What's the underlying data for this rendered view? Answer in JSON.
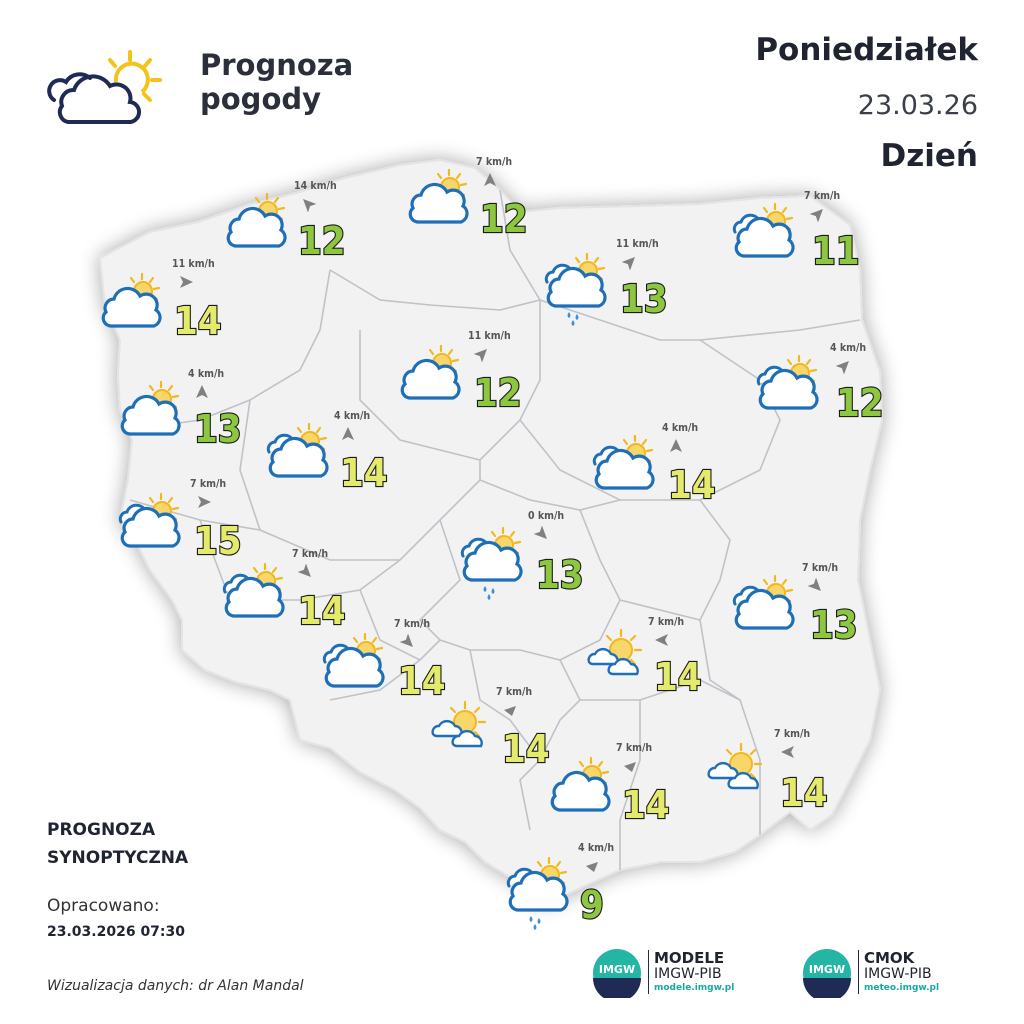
{
  "header": {
    "title_line1": "Prognoza",
    "title_line2": "pogody",
    "day": "Poniedziałek",
    "date": "23.03.26",
    "period": "Dzień"
  },
  "footer": {
    "synoptic_line1": "PROGNOZA",
    "synoptic_line2": "SYNOPTYCZNA",
    "prepared_label": "Opracowano:",
    "prepared_datetime": "23.03.2026 07:30",
    "credit": "Wizualizacja danych: dr Alan Mandal"
  },
  "logos": [
    {
      "badge": "IMGW",
      "title": "MODELE",
      "subtitle": "IMGW-PIB",
      "url": "modele.imgw.pl"
    },
    {
      "badge": "IMGW",
      "title": "CMOK",
      "subtitle": "IMGW-PIB",
      "url": "meteo.imgw.pl"
    }
  ],
  "colors": {
    "temp_cool": "#8dc63f",
    "temp_warm": "#e4ea6a",
    "cloud_stroke": "#1e6fb8",
    "sun": "#f2b81c",
    "rain": "#3f8fd8",
    "wind_arrow": "#808080",
    "map_fill": "#f2f2f3"
  },
  "locations": [
    {
      "id": "szczecin",
      "temp": "14",
      "wind": "11 km/h",
      "wind_dir": "east",
      "icon": "partly-cloudy-icon"
    },
    {
      "id": "koszalin",
      "temp": "12",
      "wind": "14 km/h",
      "wind_dir": "north-west",
      "icon": "partly-cloudy-icon"
    },
    {
      "id": "gdansk",
      "temp": "12",
      "wind": "7 km/h",
      "wind_dir": "north",
      "icon": "partly-cloudy-icon"
    },
    {
      "id": "olsztyn",
      "temp": "13",
      "wind": "11 km/h",
      "wind_dir": "north-east",
      "icon": "cloudy-rain-icon"
    },
    {
      "id": "suwalki",
      "temp": "11",
      "wind": "7 km/h",
      "wind_dir": "north-east",
      "icon": "cloudy-sun-icon"
    },
    {
      "id": "gorzow",
      "temp": "13",
      "wind": "4 km/h",
      "wind_dir": "north",
      "icon": "partly-cloudy-icon"
    },
    {
      "id": "bydgoszcz",
      "temp": "12",
      "wind": "11 km/h",
      "wind_dir": "north-east",
      "icon": "partly-cloudy-icon"
    },
    {
      "id": "bialystok",
      "temp": "12",
      "wind": "4 km/h",
      "wind_dir": "north-east",
      "icon": "cloudy-sun-icon"
    },
    {
      "id": "poznan",
      "temp": "14",
      "wind": "4 km/h",
      "wind_dir": "north",
      "icon": "cloudy-sun-icon"
    },
    {
      "id": "warszawa",
      "temp": "14",
      "wind": "4 km/h",
      "wind_dir": "north",
      "icon": "cloudy-sun-icon"
    },
    {
      "id": "zielona-gora",
      "temp": "15",
      "wind": "7 km/h",
      "wind_dir": "east",
      "icon": "cloudy-sun-icon"
    },
    {
      "id": "lodz",
      "temp": "13",
      "wind": "0 km/h",
      "wind_dir": "south-east",
      "icon": "cloudy-rain-icon"
    },
    {
      "id": "legnica",
      "temp": "14",
      "wind": "7 km/h",
      "wind_dir": "south-east",
      "icon": "cloudy-sun-icon"
    },
    {
      "id": "lublin",
      "temp": "13",
      "wind": "7 km/h",
      "wind_dir": "south-east",
      "icon": "cloudy-sun-icon"
    },
    {
      "id": "wroclaw",
      "temp": "14",
      "wind": "7 km/h",
      "wind_dir": "south-east",
      "icon": "cloudy-sun-icon"
    },
    {
      "id": "kielce",
      "temp": "14",
      "wind": "7 km/h",
      "wind_dir": "west",
      "icon": "sunny-clouds-icon"
    },
    {
      "id": "opole",
      "temp": "14",
      "wind": "7 km/h",
      "wind_dir": "none",
      "icon": "sunny-clouds-icon"
    },
    {
      "id": "krakow",
      "temp": "14",
      "wind": "7 km/h",
      "wind_dir": "none",
      "icon": "partly-cloudy-icon"
    },
    {
      "id": "rzeszow",
      "temp": "14",
      "wind": "7 km/h",
      "wind_dir": "west",
      "icon": "sunny-clouds-icon"
    },
    {
      "id": "zakopane",
      "temp": "9",
      "wind": "4 km/h",
      "wind_dir": "none",
      "icon": "cloudy-rain-icon"
    }
  ]
}
